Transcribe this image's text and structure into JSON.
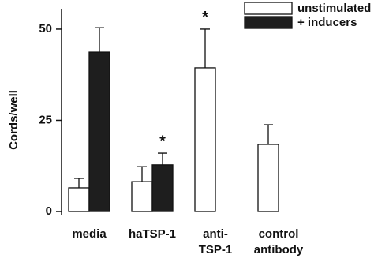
{
  "chart_data": {
    "type": "bar",
    "ylabel": "Cords/well",
    "categories": [
      [
        "media"
      ],
      [
        "haTSP-1"
      ],
      [
        "anti-",
        "TSP-1"
      ],
      [
        "control",
        "antibody"
      ]
    ],
    "series": [
      {
        "name": "unstimulated",
        "color": "#ffffff",
        "values": [
          6.5,
          8.2,
          39.4,
          18.4
        ],
        "errors": [
          2.6,
          4.1,
          10.6,
          5.4
        ],
        "significance": [
          null,
          null,
          "*",
          null
        ]
      },
      {
        "name": "+ inducers",
        "color": "#1e1e1e",
        "values": [
          43.7,
          12.8,
          null,
          null
        ],
        "errors": [
          6.7,
          3.2,
          null,
          null
        ],
        "significance": [
          null,
          "*",
          null,
          null
        ]
      }
    ],
    "ylim": [
      0,
      55.4
    ],
    "yticks": [
      0,
      25,
      50
    ],
    "legend": "upper right"
  }
}
